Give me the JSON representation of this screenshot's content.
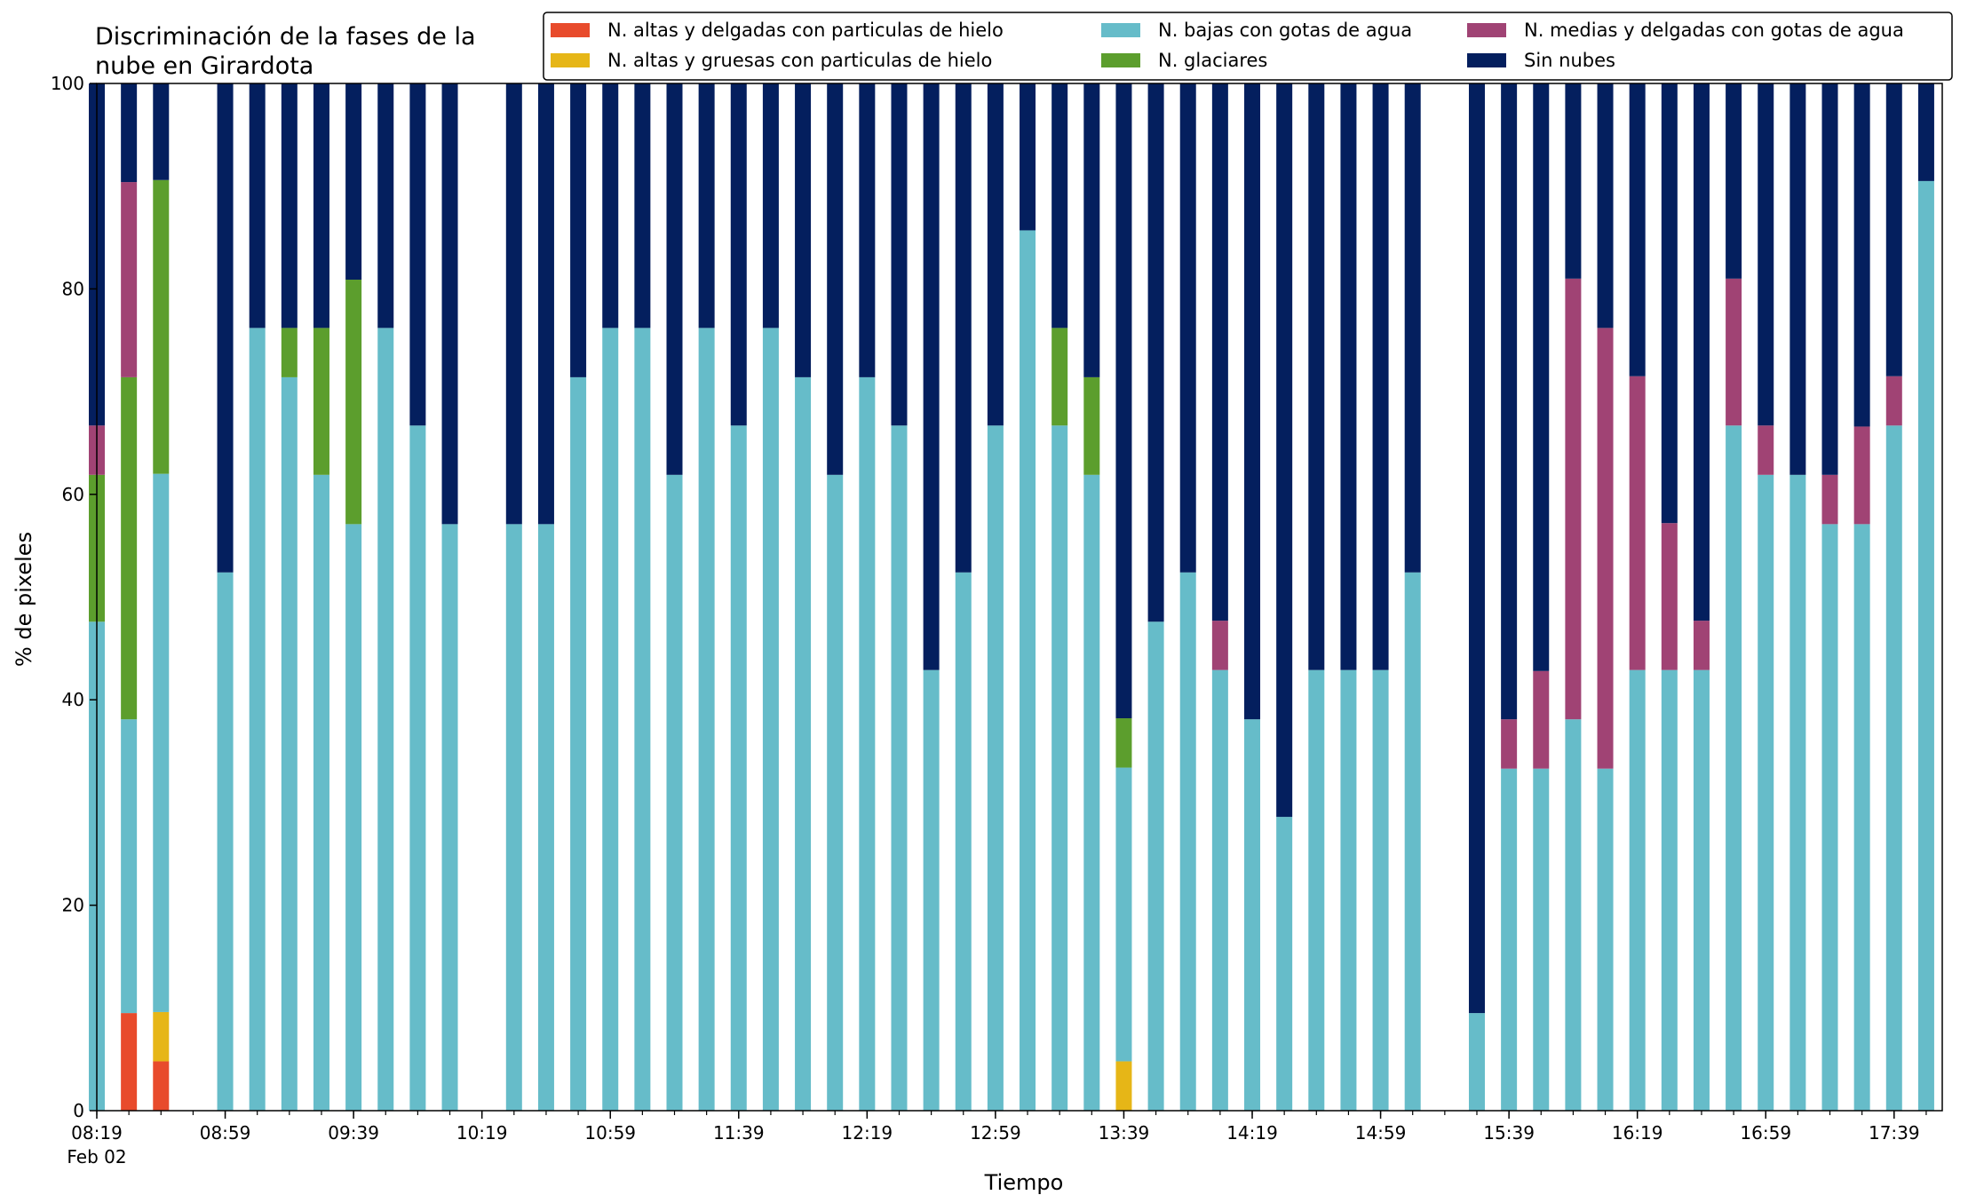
{
  "chart_data": {
    "type": "bar",
    "stacked": true,
    "title_lines": [
      "Discriminación de la fases de la",
      "nube en Girardota"
    ],
    "xlabel": "Tiempo",
    "ylabel": "% de pixeles",
    "ylim": [
      0,
      100
    ],
    "yticks": [
      0,
      20,
      40,
      60,
      80,
      100
    ],
    "x_tick_labels": [
      "08:19",
      "08:59",
      "09:39",
      "10:19",
      "10:59",
      "11:39",
      "12:19",
      "12:59",
      "13:39",
      "14:19",
      "14:59",
      "15:39",
      "16:19",
      "16:59",
      "17:39"
    ],
    "x_date_label": "Feb 02",
    "x_start_minutes": 499,
    "x_end_minutes": 1074,
    "x_step_minutes": 10,
    "x_minor_step_minutes": 10,
    "legend_position": "top-right",
    "legend_columns": 3,
    "series": [
      {
        "name": "N. altas y delgadas con particulas de hielo",
        "color": "#e84b2c"
      },
      {
        "name": "N. altas y gruesas con particulas de hielo",
        "color": "#e6b617"
      },
      {
        "name": "N. bajas con gotas de agua",
        "color": "#66bcc9"
      },
      {
        "name": "N. glaciares",
        "color": "#5c9e2d"
      },
      {
        "name": "N. medias y delgadas con gotas de agua",
        "color": "#a04374"
      },
      {
        "name": "Sin nubes",
        "color": "#041f5e"
      }
    ],
    "bars": [
      {
        "time": "08:19",
        "values": [
          0,
          0,
          47.6,
          14.3,
          4.8,
          33.3
        ]
      },
      {
        "time": "08:29",
        "values": [
          9.5,
          0,
          28.6,
          33.3,
          19.0,
          9.6
        ]
      },
      {
        "time": "08:39",
        "values": [
          4.8,
          4.8,
          52.4,
          28.6,
          0,
          9.4
        ]
      },
      {
        "time": "08:59",
        "values": [
          0,
          0,
          52.4,
          0,
          0,
          47.6
        ]
      },
      {
        "time": "09:09",
        "values": [
          0,
          0,
          76.2,
          0,
          0,
          23.8
        ]
      },
      {
        "time": "09:19",
        "values": [
          0,
          0,
          71.4,
          4.8,
          0,
          23.8
        ]
      },
      {
        "time": "09:29",
        "values": [
          0,
          0,
          61.9,
          14.3,
          0,
          23.8
        ]
      },
      {
        "time": "09:39",
        "values": [
          0,
          0,
          57.1,
          23.8,
          0,
          19.1
        ]
      },
      {
        "time": "09:49",
        "values": [
          0,
          0,
          76.2,
          0,
          0,
          23.8
        ]
      },
      {
        "time": "09:59",
        "values": [
          0,
          0,
          66.7,
          0,
          0,
          33.3
        ]
      },
      {
        "time": "10:09",
        "values": [
          0,
          0,
          57.1,
          0,
          0,
          42.9
        ]
      },
      {
        "time": "10:29",
        "values": [
          0,
          0,
          57.1,
          0,
          0,
          42.9
        ]
      },
      {
        "time": "10:39",
        "values": [
          0,
          0,
          57.1,
          0,
          0,
          42.9
        ]
      },
      {
        "time": "10:49",
        "values": [
          0,
          0,
          71.4,
          0,
          0,
          28.6
        ]
      },
      {
        "time": "10:59",
        "values": [
          0,
          0,
          76.2,
          0,
          0,
          23.8
        ]
      },
      {
        "time": "11:09",
        "values": [
          0,
          0,
          76.2,
          0,
          0,
          23.8
        ]
      },
      {
        "time": "11:19",
        "values": [
          0,
          0,
          61.9,
          0,
          0,
          38.1
        ]
      },
      {
        "time": "11:29",
        "values": [
          0,
          0,
          76.2,
          0,
          0,
          23.8
        ]
      },
      {
        "time": "11:39",
        "values": [
          0,
          0,
          66.7,
          0,
          0,
          33.3
        ]
      },
      {
        "time": "11:49",
        "values": [
          0,
          0,
          76.2,
          0,
          0,
          23.8
        ]
      },
      {
        "time": "11:59",
        "values": [
          0,
          0,
          71.4,
          0,
          0,
          28.6
        ]
      },
      {
        "time": "12:09",
        "values": [
          0,
          0,
          61.9,
          0,
          0,
          38.1
        ]
      },
      {
        "time": "12:19",
        "values": [
          0,
          0,
          71.4,
          0,
          0,
          28.6
        ]
      },
      {
        "time": "12:29",
        "values": [
          0,
          0,
          66.7,
          0,
          0,
          33.3
        ]
      },
      {
        "time": "12:39",
        "values": [
          0,
          0,
          42.9,
          0,
          0,
          57.1
        ]
      },
      {
        "time": "12:49",
        "values": [
          0,
          0,
          52.4,
          0,
          0,
          47.6
        ]
      },
      {
        "time": "12:59",
        "values": [
          0,
          0,
          66.7,
          0,
          0,
          33.3
        ]
      },
      {
        "time": "13:09",
        "values": [
          0,
          0,
          85.7,
          0,
          0,
          14.3
        ]
      },
      {
        "time": "13:19",
        "values": [
          0,
          0,
          66.7,
          9.5,
          0,
          23.8
        ]
      },
      {
        "time": "13:29",
        "values": [
          0,
          0,
          61.9,
          9.5,
          0,
          28.6
        ]
      },
      {
        "time": "13:39",
        "values": [
          0,
          4.8,
          28.6,
          4.8,
          0,
          61.8
        ]
      },
      {
        "time": "13:49",
        "values": [
          0,
          0,
          47.6,
          0,
          0,
          52.4
        ]
      },
      {
        "time": "13:59",
        "values": [
          0,
          0,
          52.4,
          0,
          0,
          47.6
        ]
      },
      {
        "time": "14:09",
        "values": [
          0,
          0,
          42.9,
          0,
          4.8,
          52.3
        ]
      },
      {
        "time": "14:19",
        "values": [
          0,
          0,
          38.1,
          0,
          0,
          61.9
        ]
      },
      {
        "time": "14:29",
        "values": [
          0,
          0,
          28.6,
          0,
          0,
          71.4
        ]
      },
      {
        "time": "14:39",
        "values": [
          0,
          0,
          42.9,
          0,
          0,
          57.1
        ]
      },
      {
        "time": "14:49",
        "values": [
          0,
          0,
          42.9,
          0,
          0,
          57.1
        ]
      },
      {
        "time": "14:59",
        "values": [
          0,
          0,
          42.9,
          0,
          0,
          57.1
        ]
      },
      {
        "time": "15:09",
        "values": [
          0,
          0,
          52.4,
          0,
          0,
          47.6
        ]
      },
      {
        "time": "15:29",
        "values": [
          0,
          0,
          9.5,
          0,
          0,
          90.5
        ]
      },
      {
        "time": "15:39",
        "values": [
          0,
          0,
          33.3,
          0,
          4.8,
          61.9
        ]
      },
      {
        "time": "15:49",
        "values": [
          0,
          0,
          33.3,
          0,
          9.5,
          57.2
        ]
      },
      {
        "time": "15:59",
        "values": [
          0,
          0,
          38.1,
          0,
          42.9,
          19.0
        ]
      },
      {
        "time": "16:09",
        "values": [
          0,
          0,
          33.3,
          0,
          42.9,
          23.8
        ]
      },
      {
        "time": "16:19",
        "values": [
          0,
          0,
          42.9,
          0,
          28.6,
          28.5
        ]
      },
      {
        "time": "16:29",
        "values": [
          0,
          0,
          42.9,
          0,
          14.3,
          42.8
        ]
      },
      {
        "time": "16:39",
        "values": [
          0,
          0,
          42.9,
          0,
          4.8,
          52.3
        ]
      },
      {
        "time": "16:49",
        "values": [
          0,
          0,
          66.7,
          0,
          14.3,
          19.0
        ]
      },
      {
        "time": "16:59",
        "values": [
          0,
          0,
          61.9,
          0,
          4.8,
          33.3
        ]
      },
      {
        "time": "17:09",
        "values": [
          0,
          0,
          61.9,
          0,
          0,
          38.1
        ]
      },
      {
        "time": "17:19",
        "values": [
          0,
          0,
          57.1,
          0,
          4.8,
          38.1
        ]
      },
      {
        "time": "17:29",
        "values": [
          0,
          0,
          57.1,
          0,
          9.5,
          33.4
        ]
      },
      {
        "time": "17:39",
        "values": [
          0,
          0,
          66.7,
          0,
          4.8,
          28.5
        ]
      },
      {
        "time": "17:49",
        "values": [
          0,
          0,
          90.5,
          0,
          0,
          9.5
        ]
      }
    ]
  }
}
